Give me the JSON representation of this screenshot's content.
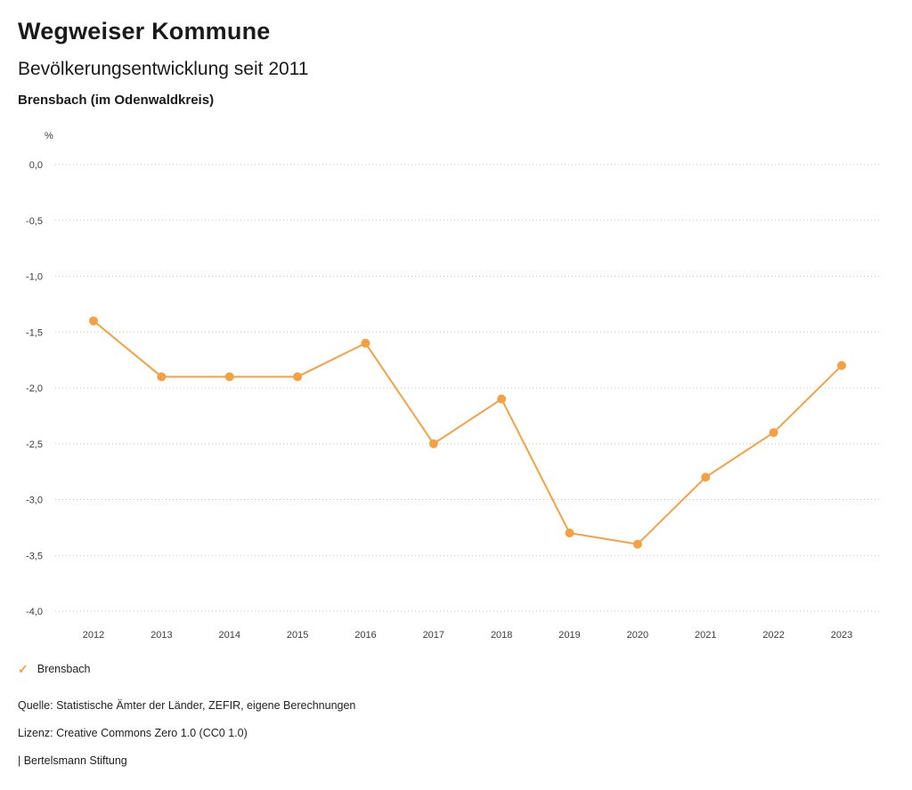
{
  "header": {
    "title": "Wegweiser Kommune",
    "subtitle": "Bevölkerungsentwicklung seit 2011",
    "region": "Brensbach (im Odenwaldkreis)"
  },
  "chart_data": {
    "type": "line",
    "title": "Bevölkerungsentwicklung seit 2011",
    "xlabel": "",
    "ylabel": "%",
    "x": [
      2012,
      2013,
      2014,
      2015,
      2016,
      2017,
      2018,
      2019,
      2020,
      2021,
      2022,
      2023
    ],
    "series": [
      {
        "name": "Brensbach",
        "values": [
          -1.4,
          -1.9,
          -1.9,
          -1.9,
          -1.6,
          -2.5,
          -2.1,
          -3.3,
          -3.4,
          -2.8,
          -2.4,
          -1.8
        ],
        "color": "#f5a142"
      }
    ],
    "ylim": [
      -4.0,
      0.0
    ],
    "ytick_step": 0.5,
    "grid": "horizontal-dotted",
    "legend_position": "bottom-left"
  },
  "legend": {
    "items": [
      {
        "label": "Brensbach",
        "color": "#f5a142",
        "marker": "check"
      }
    ]
  },
  "footer": {
    "source": "Quelle: Statistische Ämter der Länder, ZEFIR, eigene Berechnungen",
    "license": "Lizenz: Creative Commons Zero 1.0 (CC0 1.0)",
    "attribution": "| Bertelsmann Stiftung"
  }
}
